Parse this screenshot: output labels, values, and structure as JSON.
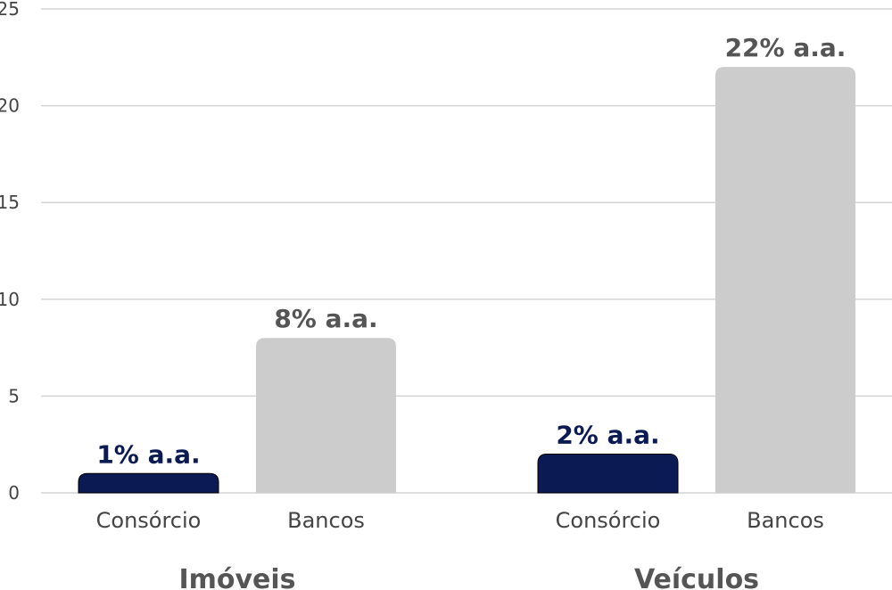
{
  "chart_data": {
    "type": "bar",
    "title": "",
    "xlabel": "",
    "ylabel": "",
    "ylim": [
      0,
      25
    ],
    "yticks": [
      0,
      5,
      10,
      15,
      20,
      25
    ],
    "grid": true,
    "groups": [
      {
        "name": "Imóveis",
        "bars": [
          {
            "category": "Consórcio",
            "value": 1,
            "label": "1% a.a.",
            "color": "#0b1a52"
          },
          {
            "category": "Bancos",
            "value": 8,
            "label": "8% a.a.",
            "color": "#cccccc"
          }
        ]
      },
      {
        "name": "Veículos",
        "bars": [
          {
            "category": "Consórcio",
            "value": 2,
            "label": "2% a.a.",
            "color": "#0b1a52"
          },
          {
            "category": "Bancos",
            "value": 22,
            "label": "22% a.a.",
            "color": "#cccccc"
          }
        ]
      }
    ],
    "colors": {
      "consorcio": "#0b1a52",
      "bancos": "#cccccc",
      "consorcio_label": "#0b1a52",
      "bancos_label": "#555555",
      "grid": "#d4d4d4"
    }
  }
}
